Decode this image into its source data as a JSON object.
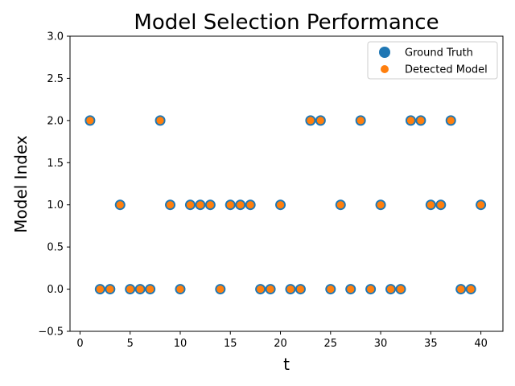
{
  "chart_data": {
    "type": "scatter",
    "title": "Model Selection Performance",
    "xlabel": "t",
    "ylabel": "Model Index",
    "xlim": [
      -1.0,
      42.2
    ],
    "ylim": [
      -0.5,
      3.0
    ],
    "xticks": [
      0,
      5,
      10,
      15,
      20,
      25,
      30,
      35,
      40
    ],
    "xtick_labels": [
      "0",
      "5",
      "10",
      "15",
      "20",
      "25",
      "30",
      "35",
      "40"
    ],
    "yticks": [
      -0.5,
      0.0,
      0.5,
      1.0,
      1.5,
      2.0,
      2.5,
      3.0
    ],
    "ytick_labels": [
      "−0.5",
      "0.0",
      "0.5",
      "1.0",
      "1.5",
      "2.0",
      "2.5",
      "3.0"
    ],
    "grid": false,
    "legend_position": "top-right",
    "x": [
      1,
      2,
      3,
      4,
      5,
      6,
      7,
      8,
      9,
      10,
      11,
      12,
      13,
      14,
      15,
      16,
      17,
      18,
      19,
      20,
      21,
      22,
      23,
      24,
      25,
      26,
      27,
      28,
      29,
      30,
      31,
      32,
      33,
      34,
      35,
      36,
      37,
      38,
      39,
      40
    ],
    "series": [
      {
        "name": "Ground Truth",
        "color": "#1f77b4",
        "marker": "large-circle",
        "values": [
          2,
          0,
          0,
          1,
          0,
          0,
          0,
          2,
          1,
          0,
          1,
          1,
          1,
          0,
          1,
          1,
          1,
          0,
          0,
          1,
          0,
          0,
          2,
          2,
          0,
          1,
          0,
          2,
          0,
          1,
          0,
          0,
          2,
          2,
          1,
          1,
          2,
          0,
          0,
          1
        ]
      },
      {
        "name": "Detected Model",
        "color": "#ff7f0e",
        "marker": "small-circle",
        "values": [
          2,
          0,
          0,
          1,
          0,
          0,
          0,
          2,
          1,
          0,
          1,
          1,
          1,
          0,
          1,
          1,
          1,
          0,
          0,
          1,
          0,
          0,
          2,
          2,
          0,
          1,
          0,
          2,
          0,
          1,
          0,
          0,
          2,
          2,
          1,
          1,
          2,
          0,
          0,
          1
        ]
      }
    ]
  }
}
